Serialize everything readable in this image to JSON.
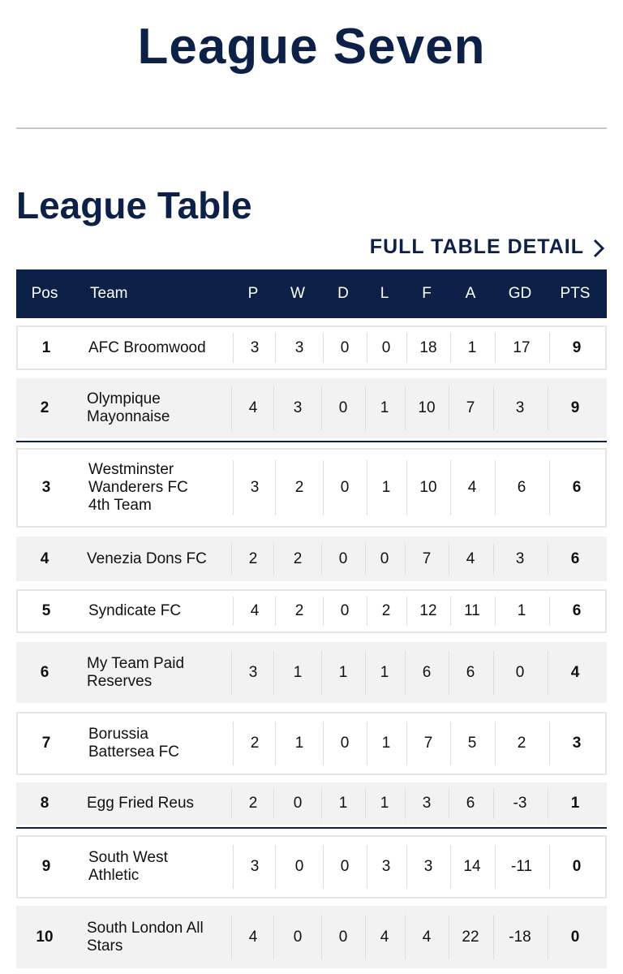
{
  "header": {
    "title": "League Seven"
  },
  "section": {
    "title": "League Table",
    "link": "FULL TABLE DETAIL"
  },
  "table": {
    "columns": [
      "Pos",
      "Team",
      "P",
      "W",
      "D",
      "L",
      "F",
      "A",
      "GD",
      "PTS"
    ],
    "rows": [
      [
        1,
        "AFC Broomwood",
        3,
        3,
        0,
        0,
        18,
        1,
        17,
        9
      ],
      [
        2,
        "Olympique Mayonnaise",
        4,
        3,
        0,
        1,
        10,
        7,
        3,
        9
      ],
      [
        3,
        "Westminster Wanderers FC 4th Team",
        3,
        2,
        0,
        1,
        10,
        4,
        6,
        6
      ],
      [
        4,
        "Venezia Dons FC",
        2,
        2,
        0,
        0,
        7,
        4,
        3,
        6
      ],
      [
        5,
        "Syndicate FC",
        4,
        2,
        0,
        2,
        12,
        11,
        1,
        6
      ],
      [
        6,
        "My Team Paid Reserves",
        3,
        1,
        1,
        1,
        6,
        6,
        0,
        4
      ],
      [
        7,
        "Borussia Battersea FC",
        2,
        1,
        0,
        1,
        7,
        5,
        2,
        3
      ],
      [
        8,
        "Egg Fried Reus",
        2,
        0,
        1,
        1,
        3,
        6,
        -3,
        1
      ],
      [
        9,
        "South West Athletic",
        3,
        0,
        0,
        3,
        3,
        14,
        -11,
        0
      ],
      [
        10,
        "South London All Stars",
        4,
        0,
        0,
        4,
        4,
        22,
        -18,
        0
      ]
    ]
  }
}
